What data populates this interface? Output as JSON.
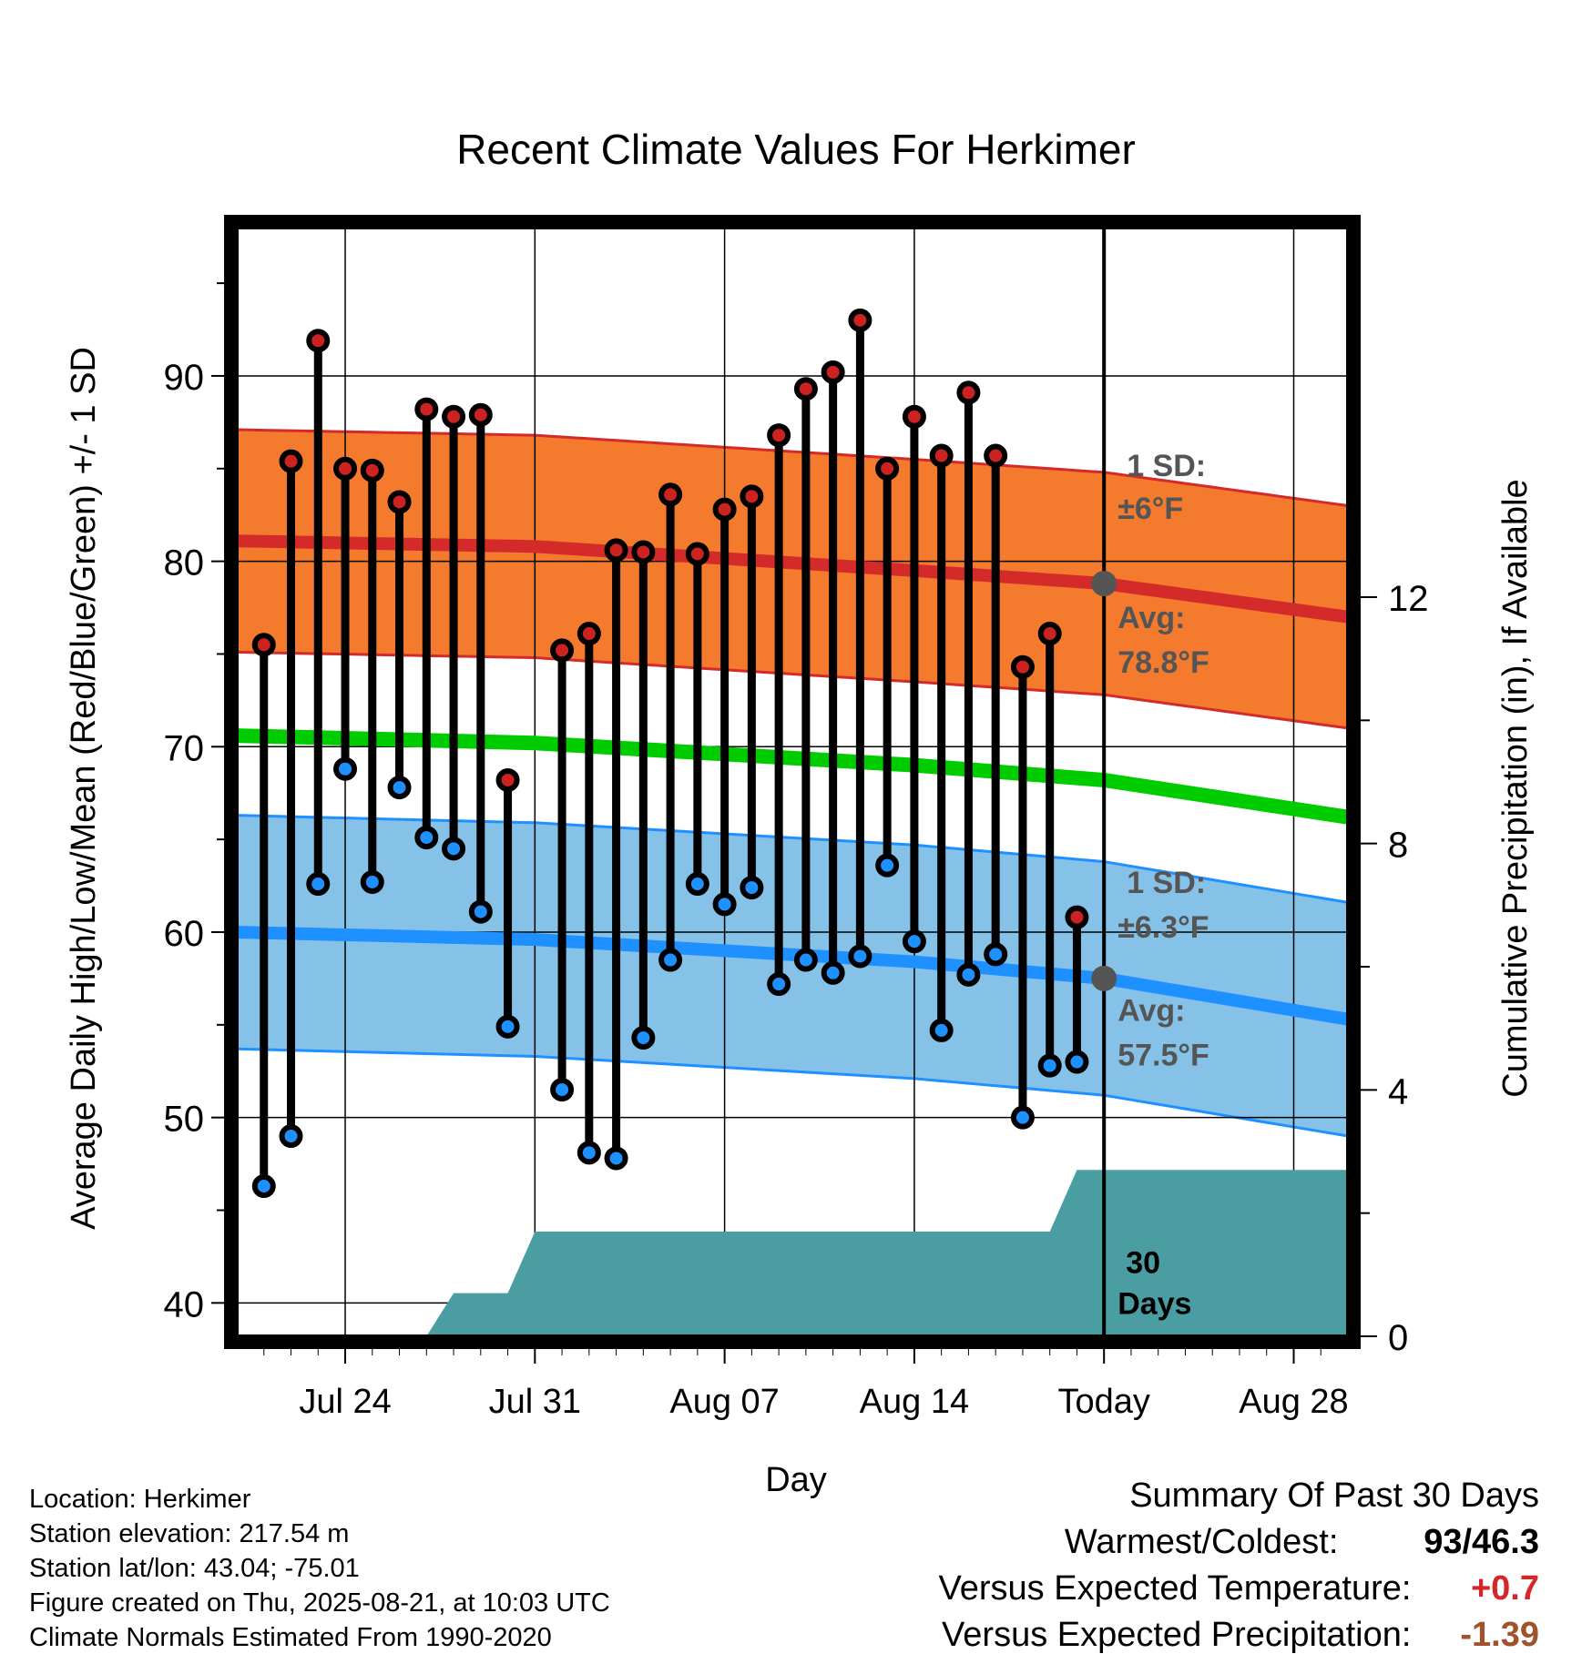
{
  "chart_data": {
    "type": "line",
    "title": "Recent Climate Values For Herkimer",
    "xlabel": "Day",
    "ylabel": "Average Daily High/Low/Mean (Red/Blue/Green) +/- 1 SD",
    "y2label": "Cumulative Precipitation (in), If Available",
    "ylim": [
      38.2,
      98
    ],
    "y2lim": [
      0,
      18
    ],
    "yticks": [
      40,
      50,
      60,
      70,
      80,
      90
    ],
    "y2ticks": [
      0,
      4,
      8,
      12
    ],
    "x_ticks": [
      "Jul 24",
      "Jul 31",
      "Aug 07",
      "Aug 14",
      "Today",
      "Aug 28"
    ],
    "x_range": [
      "2025-07-20",
      "2025-08-30"
    ],
    "x_tick_dates": [
      "2025-07-24",
      "2025-07-31",
      "2025-08-07",
      "2025-08-14",
      "2025-08-21",
      "2025-08-28"
    ],
    "today": "2025-08-21",
    "grid": true,
    "dates": [
      "2025-07-21",
      "2025-07-22",
      "2025-07-23",
      "2025-07-24",
      "2025-07-25",
      "2025-07-26",
      "2025-07-27",
      "2025-07-28",
      "2025-07-29",
      "2025-07-30",
      "2025-07-31",
      "2025-08-01",
      "2025-08-02",
      "2025-08-03",
      "2025-08-04",
      "2025-08-05",
      "2025-08-06",
      "2025-08-07",
      "2025-08-08",
      "2025-08-09",
      "2025-08-10",
      "2025-08-11",
      "2025-08-12",
      "2025-08-13",
      "2025-08-14",
      "2025-08-15",
      "2025-08-16",
      "2025-08-17",
      "2025-08-18",
      "2025-08-19",
      "2025-08-20"
    ],
    "series": [
      {
        "name": "High",
        "color": "#cc2222",
        "values": [
          75.5,
          85.4,
          91.9,
          85.0,
          84.9,
          83.2,
          88.2,
          87.8,
          87.9,
          68.2,
          null,
          75.2,
          76.1,
          80.6,
          80.5,
          83.6,
          80.4,
          82.8,
          83.5,
          86.8,
          89.3,
          90.2,
          93.0,
          85.0,
          87.8,
          85.7,
          89.1,
          85.7,
          74.3,
          76.1,
          60.8
        ]
      },
      {
        "name": "Low",
        "color": "#1e90ff",
        "values": [
          46.3,
          49.0,
          62.6,
          68.8,
          62.7,
          67.8,
          65.1,
          64.5,
          61.1,
          54.9,
          null,
          51.5,
          48.1,
          47.8,
          54.3,
          58.5,
          62.6,
          61.5,
          62.4,
          57.2,
          58.5,
          57.8,
          58.7,
          63.6,
          59.5,
          54.7,
          57.7,
          58.8,
          50.0,
          52.8,
          53.0
        ]
      }
    ],
    "normals": {
      "dates": [
        "2025-07-20",
        "2025-07-31",
        "2025-08-14",
        "2025-08-21",
        "2025-08-30"
      ],
      "high_avg": [
        81.1,
        80.8,
        79.5,
        78.8,
        77.0
      ],
      "high_sd": 6,
      "low_avg": [
        60.0,
        59.6,
        58.4,
        57.5,
        55.3
      ],
      "low_sd": 6.3,
      "mean_avg": [
        70.6,
        70.2,
        69.0,
        68.2,
        66.2
      ]
    },
    "precip": {
      "dates": [
        "2025-07-20",
        "2025-07-27",
        "2025-07-28",
        "2025-07-30",
        "2025-07-31",
        "2025-08-18",
        "2025-08-19",
        "2025-08-20",
        "2025-08-30"
      ],
      "values": [
        0,
        0,
        0.7,
        0.7,
        1.7,
        1.7,
        1.7,
        2.7,
        2.7
      ],
      "color": "#4a9ea2"
    },
    "annotations": {
      "high_sd_label": "1 SD:",
      "high_sd_value": "±6°F",
      "high_avg_label": "Avg:",
      "high_avg_value": "78.8°F",
      "low_sd_label": "1 SD:",
      "low_sd_value": "±6.3°F",
      "low_avg_label": "Avg:",
      "low_avg_value": "57.5°F",
      "days_label_1": "30",
      "days_label_2": "Days"
    }
  },
  "info": {
    "location": "Location: Herkimer",
    "elevation": "Station elevation: 217.54 m",
    "latlon": "Station lat/lon: 43.04; -75.01",
    "created": "Figure created on Thu, 2025-08-21, at 10:03 UTC",
    "normals": "Climate Normals Estimated From 1990-2020"
  },
  "summary": {
    "title": "Summary Of Past 30 Days",
    "warm_cold_label": "Warmest/Coldest:",
    "warm_value": "93",
    "slash": "/",
    "cold_value": "46.3",
    "temp_label": "Versus Expected Temperature:",
    "temp_value": "+0.7",
    "temp_color": "#d62728",
    "precip_label": "Versus Expected Precipitation:",
    "precip_value": "-1.39",
    "precip_color": "#a0522d"
  }
}
